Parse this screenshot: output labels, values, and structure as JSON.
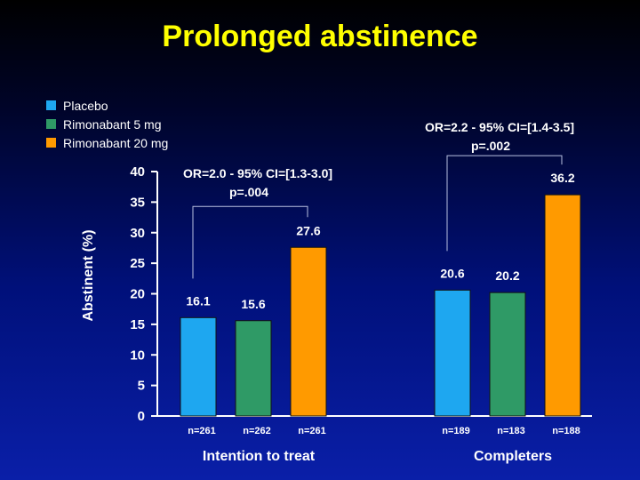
{
  "title": "Prolonged abstinence",
  "colors": {
    "placebo": "#1ea7f0",
    "rimo5": "#2f9a66",
    "rimo20": "#ff9a00",
    "title": "#ffff00"
  },
  "chart_data": {
    "type": "bar",
    "title": "Prolonged abstinence",
    "ylabel": "Abstinent (%)",
    "xlabel": "",
    "ylim": [
      0,
      40
    ],
    "yticks": [
      "0",
      "5",
      "10",
      "15",
      "20",
      "25",
      "30",
      "35",
      "40"
    ],
    "grid": false,
    "legend_position": "top-left",
    "groups": [
      {
        "label": "Intention to treat",
        "values": [
          16.1,
          15.6,
          27.6
        ],
        "value_labels": [
          "16.1",
          "15.6",
          "27.6"
        ],
        "n_labels": [
          "n=261",
          "n=262",
          "n=261"
        ],
        "annotation_line1": "OR=2.0 - 95% CI=[1.3-3.0]",
        "annotation_line2": "p=.004"
      },
      {
        "label": "Completers",
        "values": [
          20.6,
          20.2,
          36.2
        ],
        "value_labels": [
          "20.6",
          "20.2",
          "36.2"
        ],
        "n_labels": [
          "n=189",
          "n=183",
          "n=188"
        ],
        "annotation_line1": "OR=2.2 - 95% CI=[1.4-3.5]",
        "annotation_line2": "p=.002"
      }
    ],
    "series": [
      {
        "name": "Placebo",
        "color": "#1ea7f0"
      },
      {
        "name": "Rimonabant 5 mg",
        "color": "#2f9a66"
      },
      {
        "name": "Rimonabant 20 mg",
        "color": "#ff9a00"
      }
    ]
  }
}
